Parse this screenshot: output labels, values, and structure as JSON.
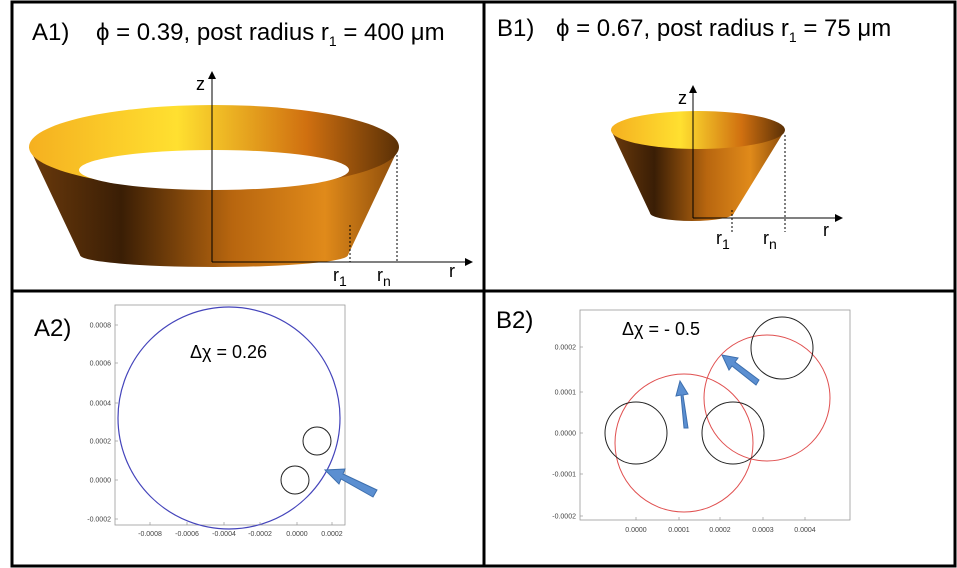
{
  "panels": [
    {
      "label": "A1)",
      "title": {
        "pre": "ϕ = 0.39, post radius r",
        "sub": "1",
        "post": " = 400 μm"
      },
      "axes": {
        "z": "z",
        "r": "r",
        "r1": "r",
        "r1_sub": "1",
        "rn": "r",
        "rn_sub": "n"
      }
    },
    {
      "label": "B1)",
      "title": {
        "pre": "ϕ = 0.67, post radius r",
        "sub": "1",
        "post": " = 75 μm"
      },
      "axes": {
        "z": "z",
        "r": "r",
        "r1": "r",
        "r1_sub": "1",
        "rn": "r",
        "rn_sub": "n"
      }
    },
    {
      "label": "A2)",
      "annotation": "Δχ = 0.26",
      "xticks": [
        "-0.0008",
        "-0.0006",
        "-0.0004",
        "-0.0002",
        "0.0000",
        "0.0002"
      ],
      "yticks": [
        "0.0008",
        "0.0006",
        "0.0004",
        "0.0002",
        "0.0000",
        "-0.0002"
      ]
    },
    {
      "label": "B2)",
      "annotation": "Δχ = - 0.5",
      "xticks": [
        "0.0000",
        "0.0001",
        "0.0002",
        "0.0003",
        "0.0004"
      ],
      "yticks": [
        "0.0002",
        "0.0001",
        "0.0000",
        "-0.0001",
        "-0.0002"
      ]
    }
  ]
}
